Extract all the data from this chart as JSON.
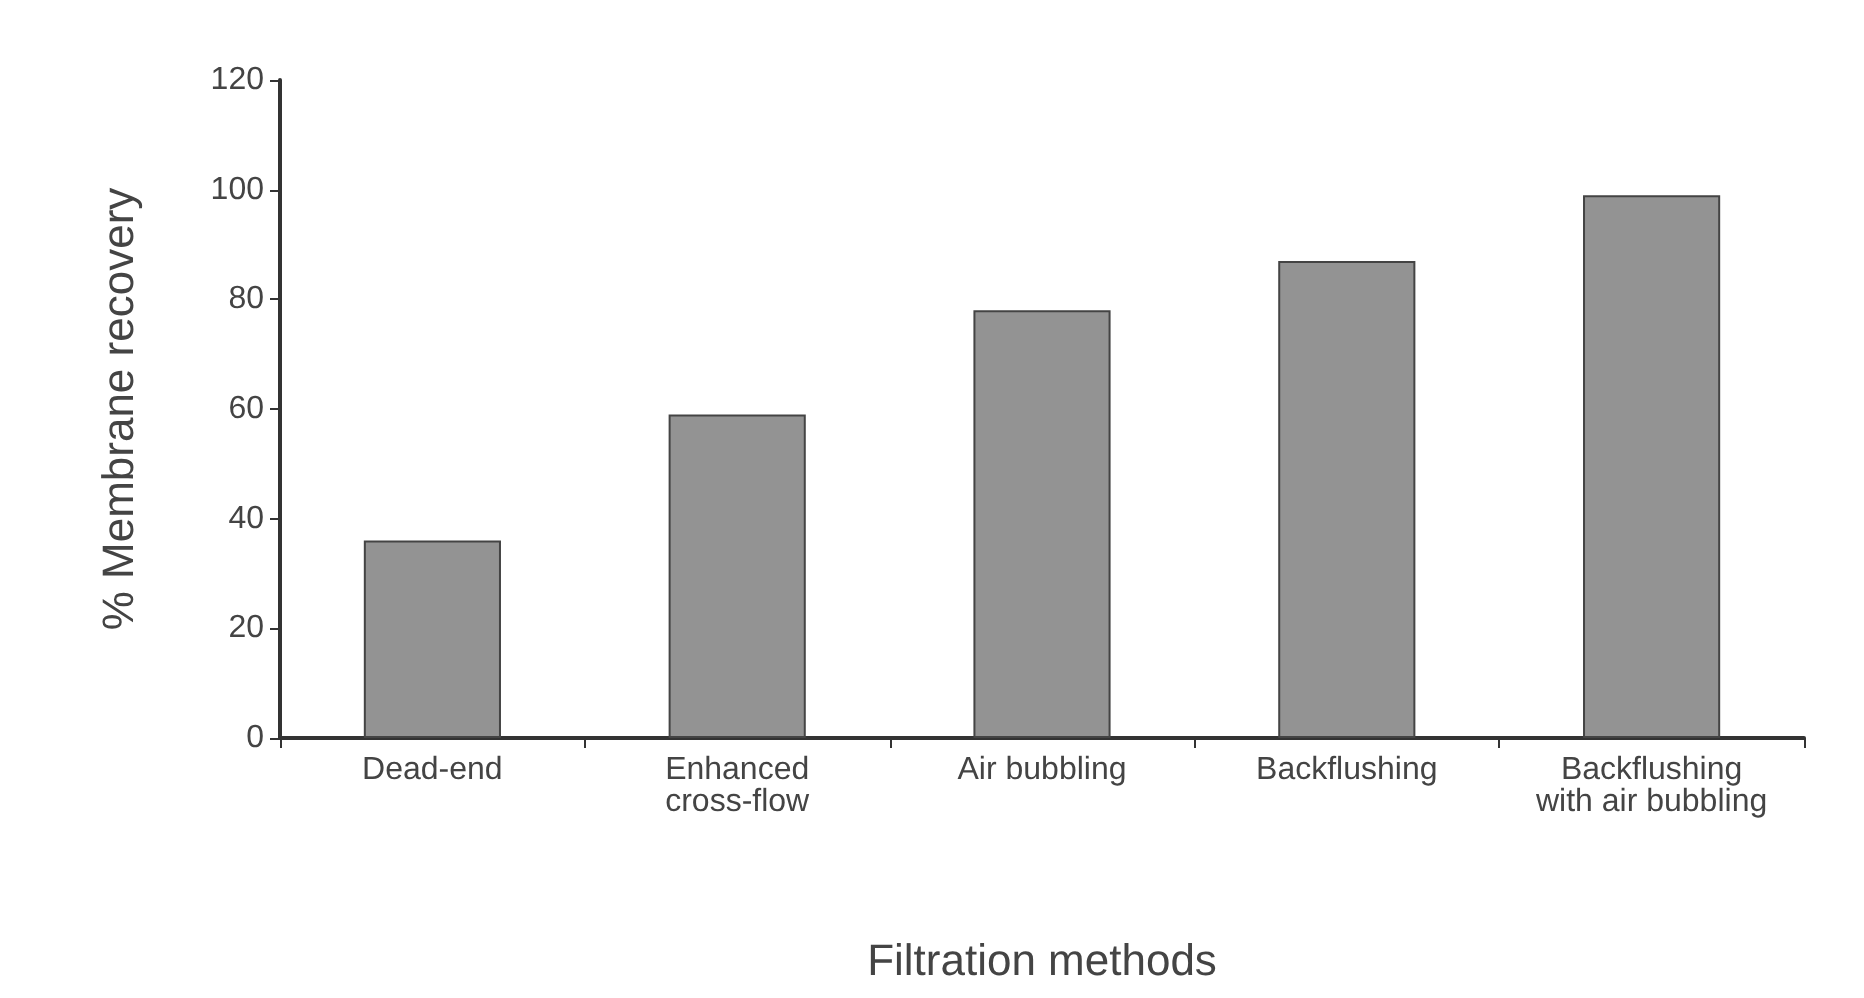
{
  "chart_data": {
    "type": "bar",
    "xlabel": "Filtration methods",
    "ylabel": "% Membrane recovery",
    "categories": [
      "Dead-end",
      "Enhanced\ncross-flow",
      "Air bubbling",
      "Backflushing",
      "Backflushing\nwith air bubbling"
    ],
    "values": [
      36,
      59,
      78,
      87,
      99
    ],
    "color": "#939393",
    "ylim": [
      0,
      120
    ],
    "yticks": [
      0,
      20,
      40,
      60,
      80,
      100,
      120
    ],
    "grid": false
  }
}
